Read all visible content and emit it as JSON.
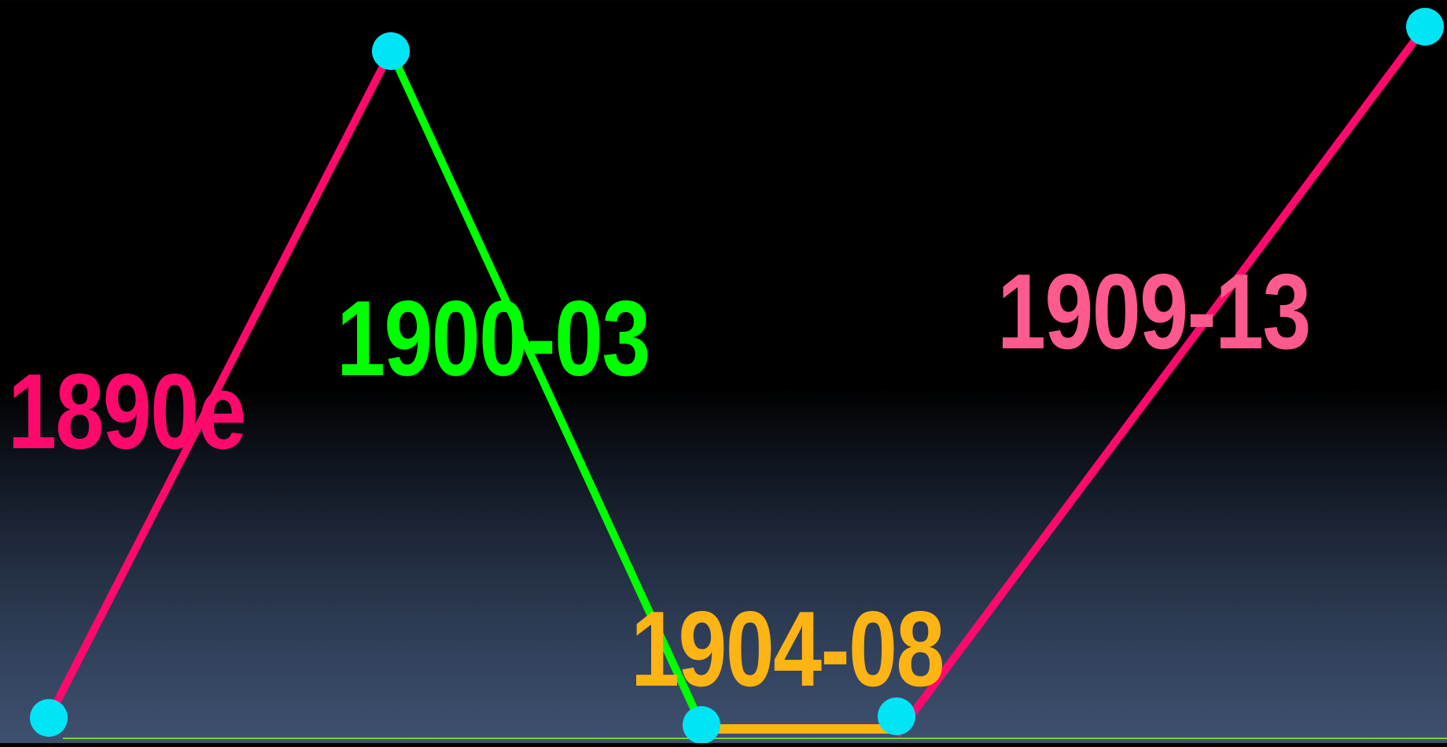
{
  "segments": [
    {
      "label": "1890e",
      "color": "#ff0a6c"
    },
    {
      "label": "1900-03",
      "color": "#00ff00"
    },
    {
      "label": "1904-08",
      "color": "#ffb415"
    },
    {
      "label": "1909-13",
      "color": "#ff0a6c"
    }
  ],
  "label_colors": [
    "#ff0a6c",
    "#00ff00",
    "#ffb415",
    "#ff5a8e"
  ],
  "node_color": "#00e5f5",
  "baseline_color": "#66dd33"
}
